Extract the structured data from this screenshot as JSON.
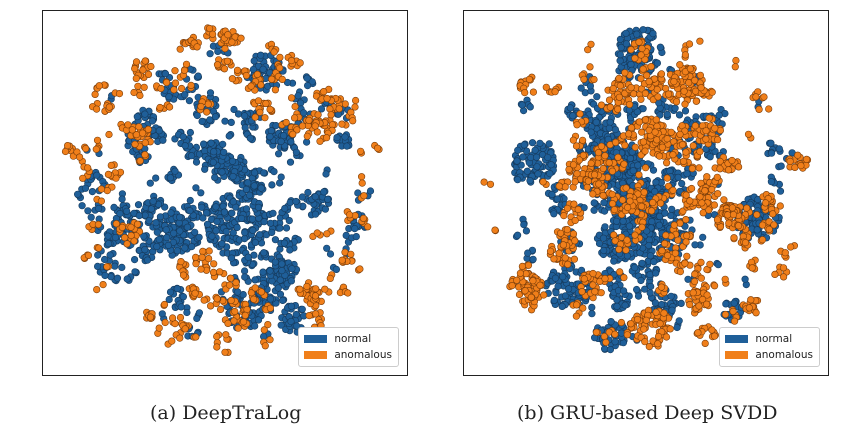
{
  "chart_data": [
    {
      "type": "scatter",
      "panel_id": "a",
      "caption": "(a)  DeepTraLog",
      "title": "",
      "xlabel": "",
      "ylabel": "",
      "axes_visible": false,
      "grid": false,
      "legend_position": "lower-right",
      "projection": "2-D embedding of normal and anomalous traces",
      "series": [
        {
          "name": "normal",
          "color": "#1f5f99",
          "edge": "#163a5c",
          "arrangement": "interior",
          "seed": 11,
          "cluster_count": 115,
          "cluster_sizes": [
            2,
            6,
            14,
            30,
            55
          ],
          "cluster_size_weights": [
            0.32,
            0.3,
            0.22,
            0.11,
            0.05
          ],
          "radial_extent": [
            0.0,
            0.92
          ],
          "radial_bias": 0.85
        },
        {
          "name": "anomalous",
          "color": "#f07f1a",
          "edge": "#7a3d0a",
          "arrangement": "periphery",
          "seed": 29,
          "cluster_count": 105,
          "cluster_sizes": [
            2,
            5,
            9,
            16
          ],
          "cluster_size_weights": [
            0.35,
            0.35,
            0.2,
            0.1
          ],
          "radial_extent": [
            0.4,
            1.0
          ],
          "radial_bias": 0.6
        }
      ]
    },
    {
      "type": "scatter",
      "panel_id": "b",
      "caption": "(b)  GRU-based Deep SVDD",
      "title": "",
      "xlabel": "",
      "ylabel": "",
      "axes_visible": false,
      "grid": false,
      "legend_position": "lower-right",
      "projection": "2-D embedding of normal and anomalous traces",
      "series": [
        {
          "name": "normal",
          "color": "#1f5f99",
          "edge": "#163a5c",
          "arrangement": "mixed",
          "seed": 47,
          "cluster_count": 95,
          "cluster_sizes": [
            2,
            6,
            16,
            40,
            80
          ],
          "cluster_size_weights": [
            0.3,
            0.28,
            0.22,
            0.12,
            0.08
          ],
          "radial_extent": [
            0.0,
            0.95
          ],
          "radial_bias": 0.9
        },
        {
          "name": "anomalous",
          "color": "#f07f1a",
          "edge": "#7a3d0a",
          "arrangement": "mixed",
          "seed": 83,
          "cluster_count": 120,
          "cluster_sizes": [
            2,
            6,
            14,
            28,
            60
          ],
          "cluster_size_weights": [
            0.34,
            0.3,
            0.2,
            0.11,
            0.05
          ],
          "radial_extent": [
            0.0,
            1.0
          ],
          "radial_bias": 0.75
        }
      ]
    }
  ],
  "legend": {
    "normal_label": "normal",
    "anomalous_label": "anomalous",
    "normal_color": "#1f5f99",
    "anomalous_color": "#f07f1a"
  }
}
